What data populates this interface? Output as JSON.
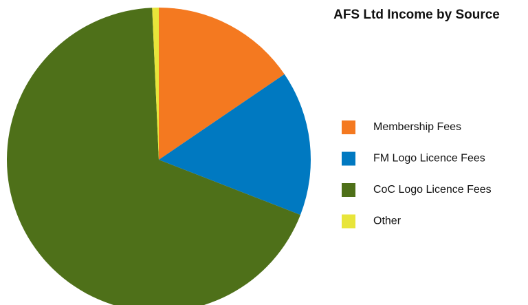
{
  "chart_data": {
    "type": "pie",
    "title": "AFS Ltd Income by Source",
    "categories": [
      "Membership Fees",
      "FM Logo Licence Fees",
      "CoC Logo Licence Fees",
      "Other"
    ],
    "values": [
      15.5,
      15.4,
      68.4,
      0.7
    ],
    "colors": [
      "#f47920",
      "#0079c1",
      "#4e7019",
      "#e8e53a"
    ],
    "legend": "right"
  }
}
